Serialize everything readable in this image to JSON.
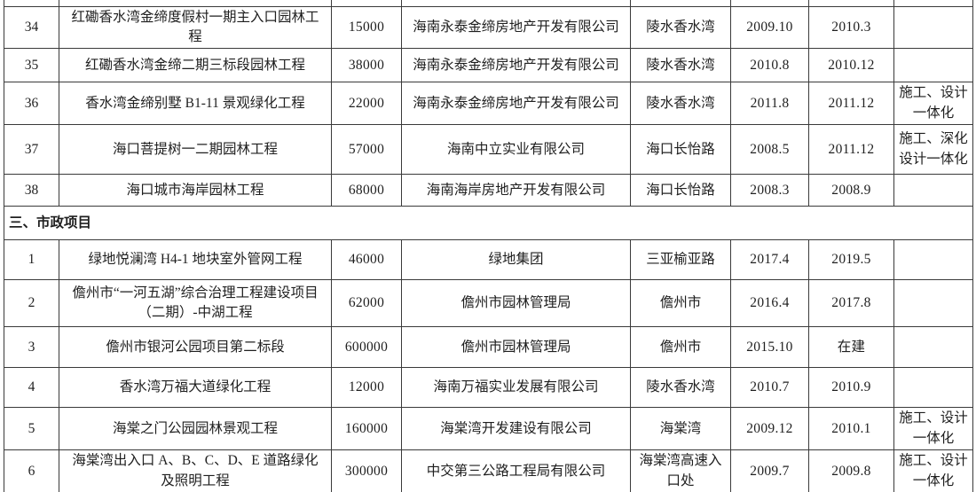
{
  "document": {
    "language": "zh-CN",
    "background_color": "#ffffff",
    "border_color": "#3a3a3a",
    "text_color": "#1f1f1f"
  },
  "table": {
    "column_keys": [
      "num",
      "name",
      "value",
      "company",
      "location",
      "start",
      "end",
      "note"
    ],
    "rows": [
      {
        "type": "data",
        "num": "34",
        "name": "红磡香水湾金缔度假村一期主入口园林工程",
        "value": "15000",
        "company": "海南永泰金缔房地产开发有限公司",
        "location": "陵水香水湾",
        "start": "2009.10",
        "end": "2010.3",
        "note": ""
      },
      {
        "type": "data",
        "num": "35",
        "name": "红磡香水湾金缔二期三标段园林工程",
        "value": "38000",
        "company": "海南永泰金缔房地产开发有限公司",
        "location": "陵水香水湾",
        "start": "2010.8",
        "end": "2010.12",
        "note": ""
      },
      {
        "type": "data",
        "num": "36",
        "name": "香水湾金缔别墅 B1-11 景观绿化工程",
        "value": "22000",
        "company": "海南永泰金缔房地产开发有限公司",
        "location": "陵水香水湾",
        "start": "2011.8",
        "end": "2011.12",
        "note": "施工、设计一体化"
      },
      {
        "type": "data",
        "num": "37",
        "name": "海口菩提树一二期园林工程",
        "value": "57000",
        "company": "海南中立实业有限公司",
        "location": "海口长怡路",
        "start": "2008.5",
        "end": "2011.12",
        "note": "施工、深化设计一体化"
      },
      {
        "type": "data",
        "num": "38",
        "name": "海口城市海岸园林工程",
        "value": "68000",
        "company": "海南海岸房地产开发有限公司",
        "location": "海口长怡路",
        "start": "2008.3",
        "end": "2008.9",
        "note": ""
      },
      {
        "type": "section",
        "label": "三、市政项目"
      },
      {
        "type": "data",
        "num": "1",
        "name": "绿地悦澜湾 H4-1 地块室外管网工程",
        "value": "46000",
        "company": "绿地集团",
        "location": "三亚榆亚路",
        "start": "2017.4",
        "end": "2019.5",
        "note": ""
      },
      {
        "type": "data",
        "num": "2",
        "name": "儋州市“一河五湖”综合治理工程建设项目（二期）-中湖工程",
        "value": "62000",
        "company": "儋州市园林管理局",
        "location": "儋州市",
        "start": "2016.4",
        "end": "2017.8",
        "note": ""
      },
      {
        "type": "data",
        "num": "3",
        "name": "儋州市银河公园项目第二标段",
        "value": "600000",
        "company": "儋州市园林管理局",
        "location": "儋州市",
        "start": "2015.10",
        "end": "在建",
        "note": ""
      },
      {
        "type": "data",
        "num": "4",
        "name": "香水湾万福大道绿化工程",
        "value": "12000",
        "company": "海南万福实业发展有限公司",
        "location": "陵水香水湾",
        "start": "2010.7",
        "end": "2010.9",
        "note": ""
      },
      {
        "type": "data",
        "num": "5",
        "name": "海棠之门公园园林景观工程",
        "value": "160000",
        "company": "海棠湾开发建设有限公司",
        "location": "海棠湾",
        "start": "2009.12",
        "end": "2010.1",
        "note": "施工、设计一体化"
      },
      {
        "type": "data",
        "num": "6",
        "name": "海棠湾出入口 A、B、C、D、E 道路绿化及照明工程",
        "value": "300000",
        "company": "中交第三公路工程局有限公司",
        "location": "海棠湾高速入口处",
        "start": "2009.7",
        "end": "2009.8",
        "note": "施工、设计一体化"
      }
    ]
  }
}
